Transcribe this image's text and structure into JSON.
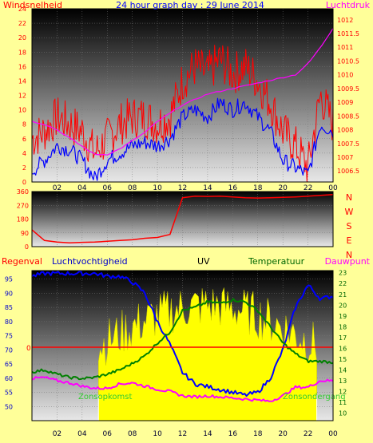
{
  "chart_data": [
    {
      "type": "line",
      "title": "24 hour graph day : 29 June 2014",
      "left_axis_label": "Windsnelheid",
      "right_axis_label": "Luchtdruk",
      "x_ticks": [
        "02",
        "04",
        "06",
        "08",
        "10",
        "12",
        "14",
        "16",
        "18",
        "20",
        "22",
        "00"
      ],
      "y_left_ticks": [
        "0",
        "2",
        "4",
        "6",
        "8",
        "10",
        "12",
        "14",
        "16",
        "18",
        "20",
        "22",
        "24"
      ],
      "y_left_range": [
        0,
        24
      ],
      "y_right_ticks": [
        "1006.5",
        "1007",
        "1007.5",
        "1008",
        "1008.5",
        "1009",
        "1009.5",
        "1010",
        "1010.5",
        "1011",
        "1011.5",
        "1012"
      ],
      "y_right_range": [
        1006.1,
        1012.4
      ],
      "x": [
        0,
        1,
        2,
        3,
        4,
        5,
        6,
        7,
        8,
        9,
        10,
        11,
        12,
        13,
        14,
        15,
        16,
        17,
        18,
        19,
        20,
        21,
        22,
        23,
        24
      ],
      "series": [
        {
          "color": "#ff0000",
          "axis": "left",
          "values": [
            6,
            7,
            9,
            8,
            7,
            4,
            6,
            8,
            9,
            9,
            8,
            9,
            14,
            16,
            15,
            17,
            15,
            16,
            14,
            11,
            7,
            5,
            2,
            12,
            8
          ]
        },
        {
          "color": "#0000ff",
          "axis": "left",
          "values": [
            1.5,
            3,
            5,
            4.5,
            3,
            0.5,
            3,
            4,
            5,
            5.5,
            5,
            6,
            9,
            10,
            9,
            11,
            10,
            11,
            9,
            7,
            3,
            2,
            1,
            8,
            7
          ]
        },
        {
          "color": "#ff00ff",
          "axis": "right",
          "values": [
            1008.3,
            1008.2,
            1008,
            1007.7,
            1007.4,
            1007.1,
            1007.1,
            1007.3,
            1007.6,
            1007.9,
            1008.3,
            1008.6,
            1008.9,
            1009.1,
            1009.3,
            1009.4,
            1009.5,
            1009.6,
            1009.7,
            1009.8,
            1009.9,
            1010,
            1010.4,
            1011,
            1011.7
          ]
        }
      ]
    },
    {
      "type": "line",
      "right_axis_label_letters": [
        "N",
        "W",
        "S",
        "E",
        "N"
      ],
      "y_ticks": [
        "0",
        "90",
        "180",
        "270",
        "360"
      ],
      "y_range": [
        0,
        360
      ],
      "x": [
        0,
        1,
        2,
        3,
        4,
        5,
        6,
        7,
        8,
        9,
        10,
        11,
        12,
        13,
        14,
        15,
        16,
        17,
        18,
        19,
        20,
        21,
        22,
        23,
        24
      ],
      "series": [
        {
          "color": "#ff0000",
          "values": [
            110,
            40,
            30,
            25,
            28,
            30,
            35,
            40,
            45,
            55,
            60,
            80,
            320,
            330,
            328,
            330,
            325,
            320,
            318,
            320,
            322,
            325,
            330,
            335,
            340
          ]
        }
      ]
    },
    {
      "type": "line",
      "labels": {
        "regenval": "Regenval",
        "luchtvochtigheid": "Luchtvochtigheid",
        "uv": "UV",
        "temperatuur": "Temperatuur",
        "dauwpunt": "Dauwpunt",
        "zonsopkomst": "Zonsopkomst",
        "zonsondergang": "Zonsondergang",
        "rain_zero": "0"
      },
      "y_left_ticks": [
        "50",
        "55",
        "60",
        "65",
        "70",
        "75",
        "80",
        "85",
        "90",
        "95"
      ],
      "y_left_range": [
        45,
        98
      ],
      "y_right_ticks": [
        "10",
        "11",
        "12",
        "13",
        "14",
        "15",
        "16",
        "17",
        "18",
        "19",
        "20",
        "21",
        "22",
        "23"
      ],
      "y_right_range": [
        9.3,
        23.2
      ],
      "x": [
        0,
        1,
        2,
        3,
        4,
        5,
        6,
        7,
        8,
        9,
        10,
        11,
        12,
        13,
        14,
        15,
        16,
        17,
        18,
        19,
        20,
        21,
        22,
        23,
        24
      ],
      "series": [
        {
          "color": "#0000ff",
          "axis": "left",
          "values": [
            96,
            97,
            97,
            97,
            97,
            97,
            96,
            96,
            94,
            90,
            80,
            72,
            62,
            58,
            57,
            56,
            55,
            54,
            55,
            60,
            70,
            85,
            93,
            88,
            89
          ]
        },
        {
          "color": "#008000",
          "axis": "right",
          "values": [
            13.8,
            14,
            13.6,
            13.3,
            13.2,
            13.3,
            13.6,
            14,
            14.6,
            15.3,
            16.5,
            17.5,
            19.5,
            19.8,
            20.3,
            20.2,
            20.5,
            20.3,
            19.5,
            18,
            16.5,
            15.5,
            14.8,
            14.8,
            14.7
          ]
        },
        {
          "color": "#ff00ff",
          "axis": "right",
          "values": [
            13.2,
            13.3,
            13,
            12.8,
            12.5,
            12.3,
            12.3,
            12.7,
            12.8,
            12.5,
            12.2,
            12,
            11.6,
            11.5,
            11.6,
            11.5,
            11.4,
            11.3,
            11.2,
            11.1,
            11.6,
            12.4,
            12.4,
            13,
            13
          ]
        }
      ]
    }
  ]
}
